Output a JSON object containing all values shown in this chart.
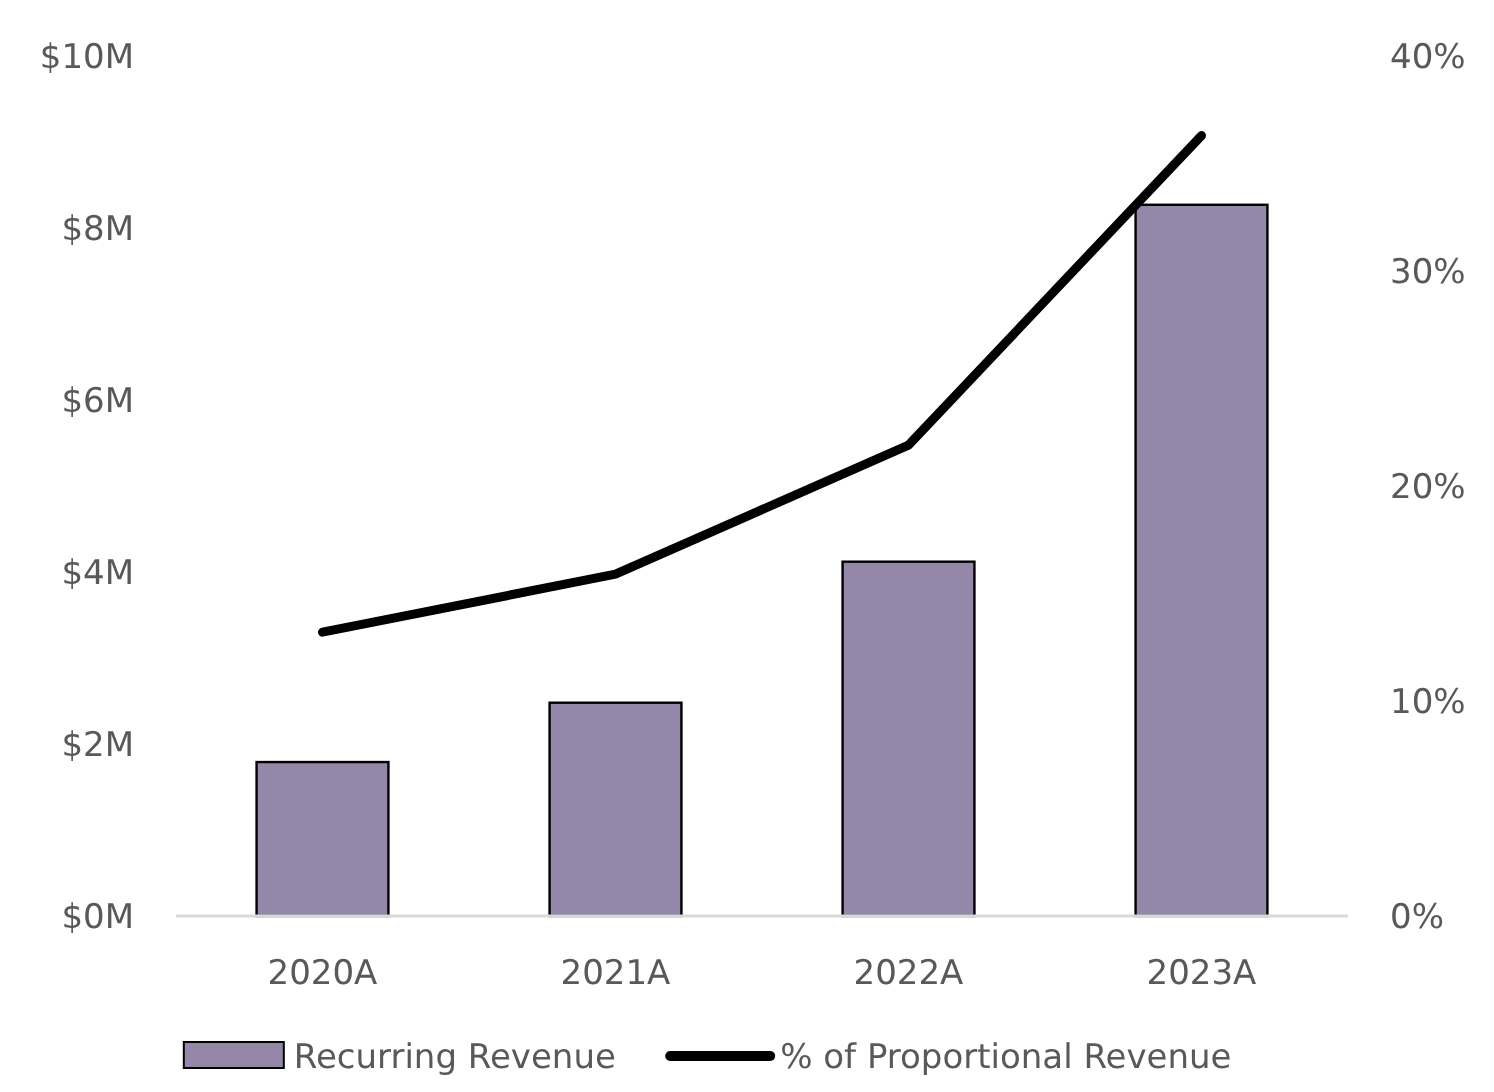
{
  "chart_data": {
    "type": "bar",
    "categories": [
      "2020A",
      "2021A",
      "2022A",
      "2023A"
    ],
    "series": [
      {
        "name": "Recurring Revenue",
        "color": "#9587a8",
        "values": [
          1.79,
          2.48,
          4.12,
          8.27
        ]
      },
      {
        "name": "% of Proportional Revenue",
        "type": "line",
        "axis": "y2",
        "color": "#000000",
        "values": [
          13.2,
          15.9,
          21.9,
          36.3
        ]
      }
    ],
    "ylim": [
      0,
      10
    ],
    "yticks": [
      {
        "value": 0,
        "label": "$0M"
      },
      {
        "value": 2,
        "label": "$2M"
      },
      {
        "value": 4,
        "label": "$4M"
      },
      {
        "value": 6,
        "label": "$6M"
      },
      {
        "value": 8,
        "label": "$8M"
      },
      {
        "value": 10,
        "label": "$10M"
      }
    ],
    "y2lim": [
      0,
      40
    ],
    "y2ticks": [
      {
        "value": 0,
        "label": "0%"
      },
      {
        "value": 10,
        "label": "10%"
      },
      {
        "value": 20,
        "label": "20%"
      },
      {
        "value": 30,
        "label": "30%"
      },
      {
        "value": 40,
        "label": "40%"
      }
    ],
    "grid": false,
    "legend": "bottom",
    "marker": "none",
    "line_style": "solid"
  }
}
